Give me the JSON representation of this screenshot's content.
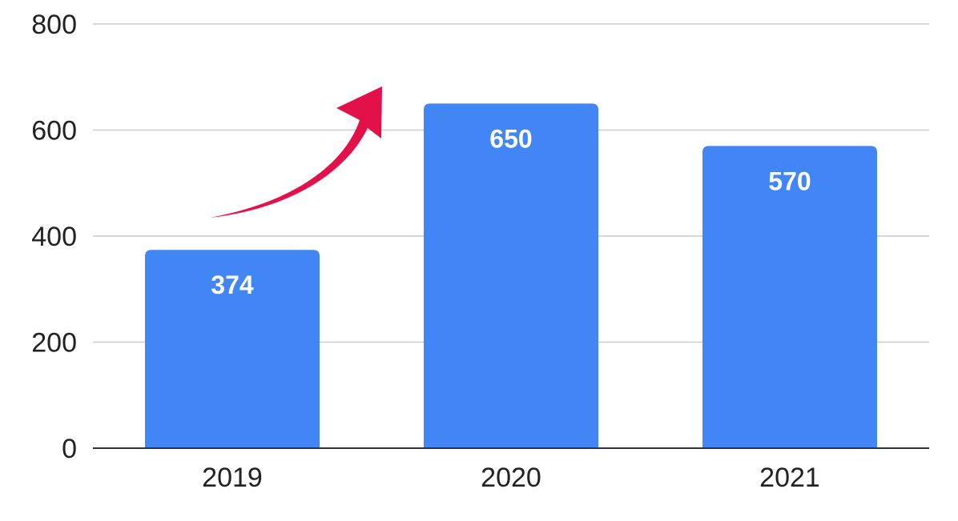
{
  "chart_data": {
    "type": "bar",
    "categories": [
      "2019",
      "2020",
      "2021"
    ],
    "values": [
      374,
      650,
      570
    ],
    "data_labels": [
      "374",
      "650",
      "570"
    ],
    "ylim": [
      0,
      800
    ],
    "yticks": [
      0,
      200,
      400,
      600,
      800
    ],
    "grid": true,
    "legend": "none",
    "title": "",
    "xlabel": "",
    "ylabel": "",
    "colors": {
      "bar": "#4285F4",
      "arrow": "#E3114A",
      "grid": "#cccccc",
      "axis": "#333333"
    },
    "annotations": [
      {
        "type": "arrow",
        "direction": "up-right",
        "from_category": "2019",
        "to_category": "2020",
        "icon": "trend-up-arrow-icon"
      }
    ]
  }
}
